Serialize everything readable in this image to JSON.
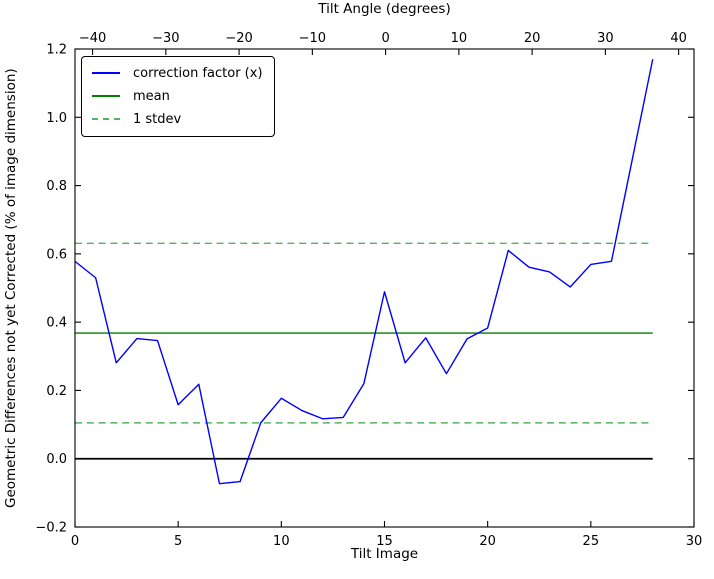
{
  "figure": {
    "background": "#ffffff",
    "frame_color": "#000000"
  },
  "legend": {
    "position": "upper-left",
    "items": [
      {
        "label": "correction factor (x)",
        "color": "#0000ff",
        "style": "solid"
      },
      {
        "label": "mean",
        "color": "#007f00",
        "style": "solid"
      },
      {
        "label": "1 stdev",
        "color": "#54b35f",
        "style": "dashed"
      }
    ]
  },
  "chart_data": {
    "type": "line",
    "title": "Tilt Angle (degrees)",
    "xlabel": "Tilt Image",
    "ylabel": "Geometric Differences not yet Corrected (% of image dimension)",
    "xlim": [
      0,
      30
    ],
    "ylim": [
      -0.2,
      1.2
    ],
    "grid": false,
    "x_ticks": [
      0,
      5,
      10,
      15,
      20,
      25,
      30
    ],
    "y_ticks": [
      {
        "value": -0.2,
        "label": "−0.2"
      },
      {
        "value": 0.0,
        "label": "0.0"
      },
      {
        "value": 0.2,
        "label": "0.2"
      },
      {
        "value": 0.4,
        "label": "0.4"
      },
      {
        "value": 0.6,
        "label": "0.6"
      },
      {
        "value": 0.8,
        "label": "0.8"
      },
      {
        "value": 1.0,
        "label": "1.0"
      },
      {
        "value": 1.2,
        "label": "1.2"
      }
    ],
    "top_axis": {
      "label": "Tilt Angle (degrees)",
      "range": [
        -42.4,
        42.1
      ],
      "ticks": [
        -40,
        -30,
        -20,
        -10,
        0,
        10,
        20,
        30,
        40
      ],
      "tick_labels": [
        "−40",
        "−30",
        "−20",
        "−10",
        "0",
        "10",
        "20",
        "30",
        "40"
      ]
    },
    "x": [
      0,
      1,
      2,
      3,
      4,
      5,
      6,
      7,
      8,
      9,
      10,
      11,
      12,
      13,
      14,
      15,
      16,
      17,
      18,
      19,
      20,
      21,
      22,
      23,
      24,
      25,
      26,
      27,
      28
    ],
    "series": [
      {
        "name": "correction factor (x)",
        "color": "#0000ff",
        "style": "solid",
        "values": [
          0.578,
          0.53,
          0.281,
          0.352,
          0.346,
          0.158,
          0.218,
          -0.073,
          -0.067,
          0.105,
          0.177,
          0.141,
          0.117,
          0.121,
          0.22,
          0.489,
          0.281,
          0.354,
          0.249,
          0.351,
          0.383,
          0.61,
          0.561,
          0.547,
          0.503,
          0.569,
          0.578,
          0.874,
          1.17
        ]
      }
    ],
    "statistics": {
      "mean": 0.368,
      "stdev": 0.263
    },
    "hlines": [
      {
        "name": "zero",
        "y": 0.0,
        "color": "#000000",
        "style": "solid",
        "x_span": [
          0,
          28
        ]
      },
      {
        "name": "mean",
        "y": 0.368,
        "color": "#007f00",
        "style": "solid",
        "x_span": [
          0,
          28
        ]
      },
      {
        "name": "stdev-upper",
        "y": 0.631,
        "color": "#54b35f",
        "style": "dashed",
        "x_span": [
          0,
          28
        ]
      },
      {
        "name": "stdev-lower",
        "y": 0.105,
        "color": "#54b35f",
        "style": "dashed",
        "x_span": [
          0,
          28
        ]
      }
    ]
  }
}
